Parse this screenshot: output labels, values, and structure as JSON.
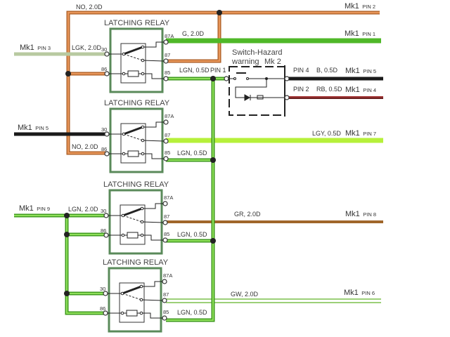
{
  "colors": {
    "orange": "#d9803f",
    "green": "#5cbf2a",
    "lightgreen": "#b6f03a",
    "pin3": "#b8c9a0",
    "black": "#1a1a1a",
    "red": "#8b2a2a",
    "brown": "#a0662a",
    "gw": "#7cc04c",
    "box": "#5a8a5a"
  },
  "relays": [
    {
      "title": "LATCHING RELAY",
      "pins": {
        "p87a": "87A",
        "p87": "87",
        "p85": "85",
        "p30": "30",
        "p86": "86"
      }
    },
    {
      "title": "LATCHING RELAY",
      "pins": {
        "p87a": "87A",
        "p87": "87",
        "p85": "85",
        "p30": "30",
        "p86": "86"
      }
    },
    {
      "title": "LATCHING RELAY",
      "pins": {
        "p87a": "87A",
        "p87": "87",
        "p85": "85",
        "p30": "30",
        "p86": "86"
      }
    },
    {
      "title": "LATCHING RELAY",
      "pins": {
        "p87a": "87A",
        "p87": "87",
        "p85": "85",
        "p30": "30",
        "p86": "86"
      }
    }
  ],
  "wires": {
    "no_top": "NO, 2.0D",
    "no_bottom": "NO, 2.0D",
    "lgk": "LGK, 2.0D",
    "g": "G, 2.0D",
    "lgn1": "LGN, 0.5D",
    "lgn2": "LGN, 0.5D",
    "lgn3": "LGN, 0.5D",
    "lgn4": "LGN, 0.5D",
    "lgn_in": "LGN, 2.0D",
    "lgy": "LGY, 0.5D",
    "gr": "GR, 2.0D",
    "gw": "GW, 2.0D",
    "b": "B, 0.5D",
    "rb": "RB, 0.5D"
  },
  "connectors": {
    "mk1_pin2": {
      "mk": "Mk1",
      "pin": "PIN 2"
    },
    "mk1_pin1": {
      "mk": "Mk1",
      "pin": "PIN 1"
    },
    "mk1_pin3": {
      "mk": "Mk1",
      "pin": "PIN 3"
    },
    "mk1_pin5_left": {
      "mk": "Mk1",
      "pin": "PIN 5"
    },
    "mk1_pin5_right": {
      "mk": "Mk1",
      "pin": "PIN 5"
    },
    "mk1_pin4": {
      "mk": "Mk1",
      "pin": "PIN 4"
    },
    "mk1_pin7": {
      "mk": "Mk1",
      "pin": "PIN 7"
    },
    "mk1_pin9": {
      "mk": "Mk1",
      "pin": "PIN 9"
    },
    "mk1_pin8": {
      "mk": "Mk1",
      "pin": "PIN 8"
    },
    "mk1_pin6": {
      "mk": "Mk1",
      "pin": "PIN 6"
    }
  },
  "switch": {
    "title_line1": "Switch-Hazard",
    "title_line2": "warning",
    "mk": "Mk 2",
    "pin1": "PIN 1",
    "pin4": "PIN 4",
    "pin2": "PIN 2"
  }
}
